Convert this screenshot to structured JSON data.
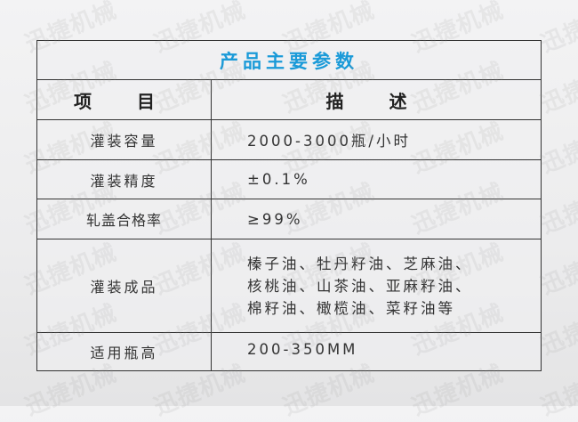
{
  "title": "产品主要参数",
  "header": {
    "item": "项 目",
    "desc": "描 述"
  },
  "rows": [
    {
      "label": "灌装容量",
      "value": "2000-3000瓶/小时"
    },
    {
      "label": "灌装精度",
      "value": "±0.1%"
    },
    {
      "label": "轧盖合格率",
      "value": "≥99%"
    },
    {
      "label": "灌装成品",
      "lines": [
        "榛子油、牡丹籽油、芝麻油、",
        "核桃油、山茶油、亚麻籽油、",
        "棉籽油、橄榄油、菜籽油等"
      ]
    },
    {
      "label": "适用瓶高",
      "value": "200-350MM"
    }
  ],
  "watermark": "迅捷机械",
  "colors": {
    "title": "#1a9ad8",
    "border": "#333333"
  }
}
